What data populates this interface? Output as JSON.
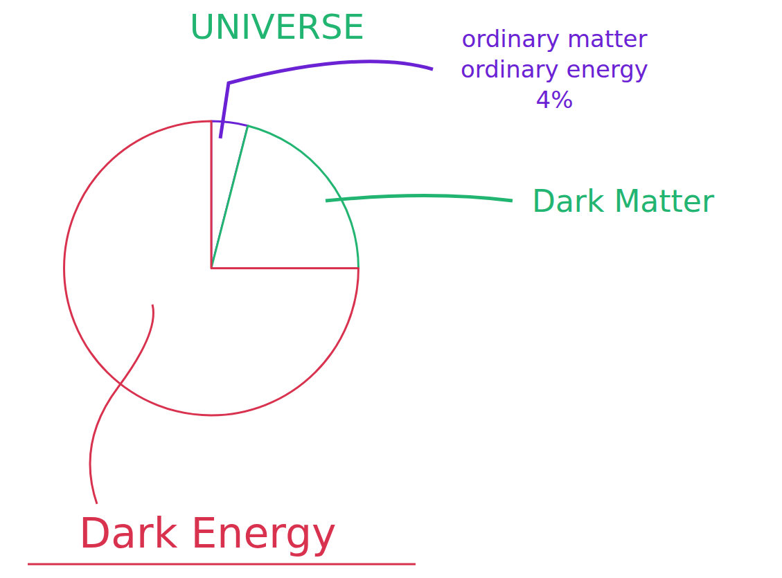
{
  "chart_data": {
    "type": "pie",
    "title": "UNIVERSE",
    "categories": [
      "ordinary matter\nordinary energy",
      "Dark Matter",
      "Dark Energy"
    ],
    "values": [
      4,
      21,
      75
    ],
    "value_labels": [
      "4%",
      null,
      null
    ],
    "colors": [
      "#6a22d4",
      "#22b572",
      "#d8324f"
    ]
  }
}
